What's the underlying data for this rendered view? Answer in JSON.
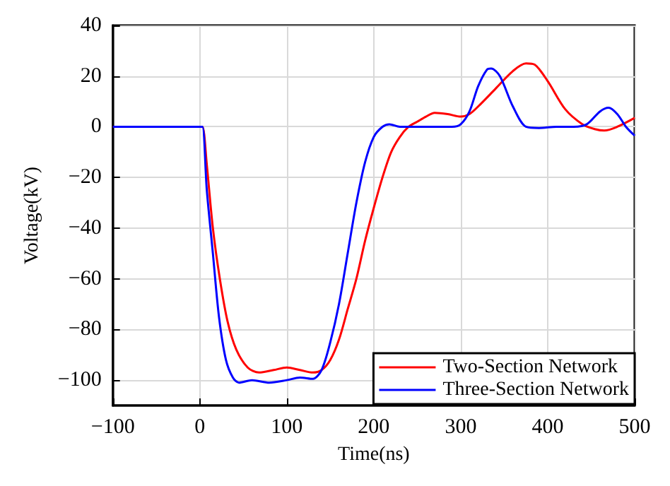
{
  "chart_data": {
    "type": "line",
    "xlabel": "Time(ns)",
    "ylabel": "Voltage(kV)",
    "xlim": [
      -100,
      500
    ],
    "xticks": [
      -100,
      0,
      100,
      200,
      300,
      400,
      500
    ],
    "ylim": [
      -110,
      40
    ],
    "yticks": [
      -100,
      -80,
      -60,
      -40,
      -20,
      0,
      20,
      40
    ],
    "grid": true,
    "legend": "bottom right",
    "marker": "none",
    "line_style": "solid",
    "series": [
      {
        "name": "Two-Section Network",
        "color": "#ff0000",
        "x": [
          -100,
          0,
          3,
          8,
          15,
          23,
          32,
          42,
          55,
          68,
          85,
          100,
          115,
          130,
          140,
          150,
          160,
          170,
          180,
          190,
          200,
          210,
          220,
          230,
          240,
          250,
          260,
          270,
          285,
          300,
          310,
          320,
          340,
          360,
          375,
          385,
          400,
          420,
          440,
          455,
          465,
          480,
          500
        ],
        "values": [
          0,
          0,
          0,
          -15,
          -40,
          -60,
          -77,
          -88,
          -95,
          -97,
          -96,
          -95,
          -96,
          -97,
          -96,
          -92,
          -84,
          -72,
          -60,
          -45,
          -32,
          -20,
          -10,
          -4,
          0,
          2,
          4,
          5.5,
          5,
          4,
          5,
          8,
          15,
          22,
          25,
          24.5,
          18,
          7,
          1,
          -1,
          -1.5,
          0,
          3.5
        ]
      },
      {
        "name": "Three-Section Network",
        "color": "#0000ff",
        "x": [
          -100,
          0,
          3,
          8,
          15,
          22,
          30,
          38,
          45,
          60,
          80,
          100,
          115,
          130,
          140,
          150,
          160,
          170,
          180,
          190,
          200,
          210,
          218,
          230,
          250,
          270,
          290,
          300,
          310,
          320,
          330,
          335,
          345,
          360,
          375,
          390,
          410,
          430,
          445,
          460,
          470,
          480,
          490,
          500
        ],
        "values": [
          0,
          0,
          0,
          -25,
          -50,
          -75,
          -92,
          -99,
          -101,
          -100,
          -101,
          -100,
          -99,
          -99.5,
          -96,
          -85,
          -70,
          -50,
          -30,
          -14,
          -4,
          0,
          1,
          0,
          0,
          0,
          0,
          1,
          6,
          16,
          22.5,
          23,
          20,
          8,
          0,
          -0.5,
          0,
          0,
          1,
          6,
          7.5,
          5,
          0,
          -3.5
        ]
      }
    ]
  }
}
